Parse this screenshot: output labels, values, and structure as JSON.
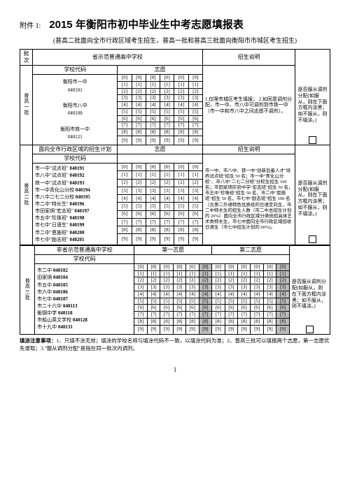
{
  "attachment": "附件 1:",
  "title": "2015 年衡阳市初中毕业生中考志愿填报表",
  "subtitle": "(普高二批面向全市行政区域考生招生，普高一批和普高三批面向衡阳市市城区考生招生)",
  "headers": {
    "batch": "批次",
    "provincial_demo": "省示范普通高中学校",
    "school_code": "学校代码",
    "choice": "志愿",
    "enroll_desc": "招生说明",
    "confirm_text": "是否服从调剂分配(如服从，则在下面方框内涂黑；如不服从，则不填涂。)",
    "city_plan": "面向全市行政区域的招生计划",
    "non_provincial": "非省示范普通高中学校",
    "choice1": "第一志愿",
    "choice2": "第二志愿"
  },
  "batch1": {
    "label": "普高一批",
    "schools_block": "衡阳市一中\n040101\n\n衡阳市八中\n040108\n\n衡阳市铁一中\n040121",
    "desc": "1.仅限市城区考生填报；\n2.如同意调剂分配，市一中、市八中可调剂到市铁一中（市一中和市八中之间志愿不调剂）。"
  },
  "batch2": {
    "label": "普高二批",
    "schools": [
      "市一中\"试点班\" 040191",
      "市八中\"试点班\" 040192",
      "铁一中\"试点班\" 040193",
      "市一中青化山分校 040194",
      "市八中二七二分校 040195",
      "市二中\"特长生\" 040196",
      "市田家炳\"宏志班\" 040197",
      "市五中\"珍珠班\" 040198",
      "市七中\"日语生\" 040199",
      "市二中\"恩施班\" 040200",
      "市七中\"励志班\" 040201"
    ],
    "desc": "市一中、市八中、铁一中\"创新后备人才\"培养试点班\"招生 50 名；市一中\"青化山分校\"、市八中\"二七二分校\"分校生招生 100 名；市田家炳实验中学\"宏志班\"招生 50 名，市五中\"珍珠班\"招生 50 名，市二中\"恩施班\"招生 50 名，市七中\"励志班\"招生 100 名（含第二外语特色优质班的日语定向生，市二中特长生的招生人数（市二中总招生计划的 20%）面向全市行政区域分类统招具体艺术类特长生，市七中面向全市行政区域招收日语生（市七中招生计划的 60%)。"
  },
  "batch3": {
    "label": "普高三批",
    "schools": [
      "市二中 040102",
      "田家炳 040104",
      "市五中 040105",
      "市六中 040106",
      "市七中 040107",
      "市二十六中 040113",
      "衡钢中学 040118",
      "市船山英文学校 040128",
      "市十九中 040131"
    ]
  },
  "code_rows_10": [
    [
      "[0]",
      "[0]",
      "[0]",
      "[0]",
      "[0]",
      "[0]"
    ],
    [
      "[1]",
      "[1]",
      "[1]",
      "[1]",
      "[1]",
      "[1]"
    ],
    [
      "[2]",
      "[2]",
      "[2]",
      "[2]",
      "[2]",
      "[2]"
    ],
    [
      "[3]",
      "[3]",
      "[3]",
      "[3]",
      "[3]",
      "[3]"
    ],
    [
      "[4]",
      "[4]",
      "[4]",
      "[4]",
      "[4]",
      "[4]"
    ],
    [
      "[5]",
      "[5]",
      "[5]",
      "[5]",
      "[5]",
      "[5]"
    ],
    [
      "[6]",
      "[6]",
      "[6]",
      "[6]",
      "[6]",
      "[6]"
    ],
    [
      "[7]",
      "[7]",
      "[7]",
      "[7]",
      "[7]",
      "[7]"
    ],
    [
      "[8]",
      "[8]",
      "[8]",
      "[8]",
      "[8]",
      "[8]"
    ],
    [
      "[9]",
      "[9]",
      "[9]",
      "[9]",
      "[9]",
      "[9]"
    ]
  ],
  "footer": "填涂注意事项：1、只填不涂无效；填涂的学校名称与填涂代码不一致，以填涂代码为准；2、普高三批可以填报两个志愿，第一志愿优先录取；3.\"服从调剂分配\"是指在同一批次内调剂。",
  "page": "1"
}
